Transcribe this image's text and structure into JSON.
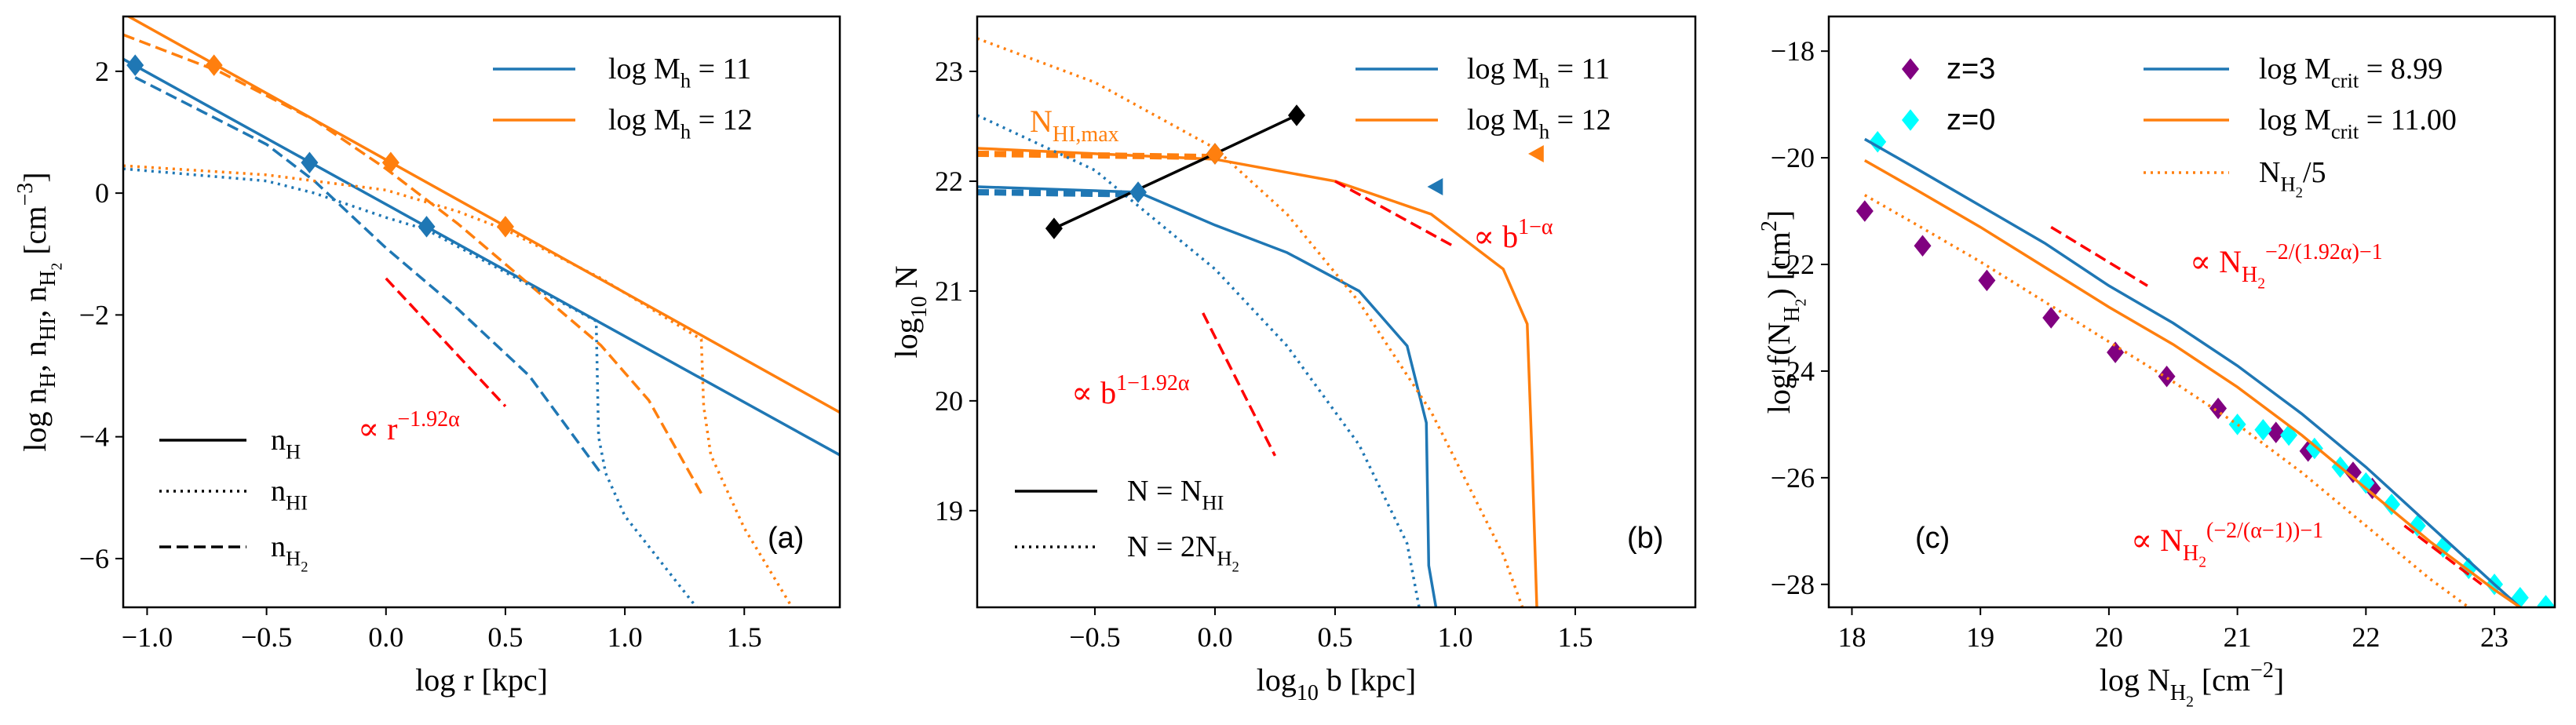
{
  "chart_data": [
    {
      "type": "line",
      "xlabel": "log r [kpc]",
      "ylabel": "log n_{H}, n_{HI}, n_{H_{2}} [cm^{−3}]",
      "panel_label": "(a)",
      "xlim": [
        -1.1,
        1.9
      ],
      "ylim": [
        -6.8,
        2.9
      ],
      "xticks": [
        {
          "value": -1,
          "label": "−1.0"
        },
        {
          "value": -0.5,
          "label": "−0.5"
        },
        {
          "value": 0,
          "label": "0.0"
        },
        {
          "value": 0.5,
          "label": "0.5"
        },
        {
          "value": 1,
          "label": "1.0"
        },
        {
          "value": 1.5,
          "label": "1.5"
        }
      ],
      "yticks": [
        {
          "value": -6,
          "label": "−6"
        },
        {
          "value": -4,
          "label": "−4"
        },
        {
          "value": -2,
          "label": "−2"
        },
        0,
        2
      ],
      "series": [
        {
          "name": "log M_{h} = 11",
          "color": "#1f77b4",
          "style": "solid",
          "x": [
            -1.1,
            1.9
          ],
          "values": [
            2.2,
            -4.3
          ]
        },
        {
          "name": "log M_{h} = 12",
          "color": "#ff7f0e",
          "style": "solid",
          "x": [
            -1.1,
            1.9
          ],
          "values": [
            2.95,
            -3.6
          ]
        },
        {
          "color": "#1f77b4",
          "style": "dashed",
          "x": [
            -1.05,
            -0.5,
            -0.3,
            0,
            0.3,
            0.6,
            0.9
          ],
          "values": [
            1.9,
            0.8,
            0.2,
            -0.9,
            -1.9,
            -3.0,
            -4.6
          ]
        },
        {
          "color": "#ff7f0e",
          "style": "dashed",
          "x": [
            -1.1,
            -0.7,
            -0.3,
            0,
            0.3,
            0.6,
            0.9,
            1.1,
            1.33
          ],
          "values": [
            2.6,
            2.0,
            1.2,
            0.4,
            -0.5,
            -1.5,
            -2.5,
            -3.4,
            -5.0
          ]
        },
        {
          "color": "#1f77b4",
          "style": "dotted",
          "x": [
            -1.1,
            -0.5,
            -0.3,
            0,
            0.17,
            0.5,
            0.88,
            0.89,
            0.92,
            1.0,
            1.3
          ],
          "values": [
            0.4,
            0.2,
            0.0,
            -0.4,
            -0.6,
            -1.3,
            -2.1,
            -4.0,
            -4.6,
            -5.3,
            -6.8
          ]
        },
        {
          "color": "#ff7f0e",
          "style": "dotted",
          "x": [
            -1.1,
            -0.5,
            0,
            0.3,
            0.5,
            0.9,
            1.32,
            1.33,
            1.36,
            1.5,
            1.7
          ],
          "values": [
            0.45,
            0.3,
            0.05,
            -0.3,
            -0.6,
            -1.4,
            -2.4,
            -3.5,
            -4.3,
            -5.5,
            -6.8
          ]
        },
        {
          "color": "#1f77b4",
          "style": "none",
          "marker": "diamond",
          "x": [
            -1.05,
            -0.32,
            0.17
          ],
          "values": [
            2.1,
            0.5,
            -0.55
          ]
        },
        {
          "color": "#ff7f0e",
          "style": "none",
          "marker": "diamond",
          "x": [
            -0.72,
            0.02,
            0.5
          ],
          "values": [
            2.1,
            0.5,
            -0.55
          ]
        },
        {
          "color": "#ff0000",
          "style": "dashed",
          "x": [
            0,
            0.5
          ],
          "values": [
            -1.4,
            -3.5
          ]
        }
      ],
      "style_legend": [
        {
          "label": "n_{H}",
          "style": "solid"
        },
        {
          "label": "n_{HI}",
          "style": "dotted"
        },
        {
          "label": "n_{H_{2}}",
          "style": "dashed"
        }
      ],
      "annotations": [
        {
          "text": "∝ r^{−1.92α}",
          "color": "#ff0000"
        }
      ]
    },
    {
      "type": "line",
      "xlabel": "log_{10} b [kpc]",
      "ylabel": "log_{10} N",
      "panel_label": "(b)",
      "xlim": [
        -0.99,
        2.0
      ],
      "ylim": [
        18.12,
        23.5
      ],
      "xticks": [
        {
          "value": -0.5,
          "label": "−0.5"
        },
        {
          "value": 0,
          "label": "0.0"
        },
        {
          "value": 0.5,
          "label": "0.5"
        },
        {
          "value": 1,
          "label": "1.0"
        },
        {
          "value": 1.5,
          "label": "1.5"
        }
      ],
      "yticks": [
        19,
        20,
        21,
        22,
        23
      ],
      "series": [
        {
          "name": "log M_{h} = 11",
          "color": "#1f77b4",
          "style": "solid",
          "x": [
            -0.99,
            -0.32,
            0,
            0.3,
            0.6,
            0.8,
            0.88,
            0.89,
            0.92
          ],
          "values": [
            21.95,
            21.9,
            21.6,
            21.35,
            21.0,
            20.5,
            19.8,
            18.5,
            18.12
          ]
        },
        {
          "name": "log M_{h} = 12",
          "color": "#ff7f0e",
          "style": "solid",
          "x": [
            -0.99,
            0,
            0.5,
            0.9,
            1.2,
            1.3,
            1.32,
            1.34
          ],
          "values": [
            22.3,
            22.2,
            22.0,
            21.7,
            21.2,
            20.7,
            19.5,
            18.12
          ]
        },
        {
          "color": "#1f77b4",
          "style": "dashed",
          "width": "thick",
          "x": [
            -0.99,
            -0.32
          ],
          "values": [
            21.9,
            21.88
          ]
        },
        {
          "color": "#ff7f0e",
          "style": "dashed",
          "width": "thick",
          "x": [
            -0.99,
            0
          ],
          "values": [
            22.25,
            22.22
          ]
        },
        {
          "color": "#1f77b4",
          "style": "dotted",
          "x": [
            -0.99,
            -0.5,
            0,
            0.3,
            0.6,
            0.8,
            0.85
          ],
          "values": [
            22.6,
            22.1,
            21.2,
            20.5,
            19.6,
            18.7,
            18.12
          ]
        },
        {
          "color": "#ff7f0e",
          "style": "dotted",
          "x": [
            -0.99,
            -0.5,
            0,
            0.3,
            0.6,
            0.9,
            1.2,
            1.28
          ],
          "values": [
            23.3,
            22.9,
            22.3,
            21.7,
            20.9,
            19.9,
            18.6,
            18.12
          ]
        },
        {
          "color": "#000000",
          "style": "solid",
          "marker": "diamond",
          "x": [
            -0.67,
            0,
            0.34
          ],
          "values": [
            21.57,
            22.25,
            22.6
          ]
        },
        {
          "color": "#1f77b4",
          "style": "none",
          "marker": "diamond",
          "x": [
            -0.32
          ],
          "values": [
            21.9
          ]
        },
        {
          "color": "#ff7f0e",
          "style": "none",
          "marker": "diamond",
          "x": [
            0
          ],
          "values": [
            22.25
          ]
        },
        {
          "color": "#1f77b4",
          "style": "none",
          "marker": "triangle-left",
          "x": [
            0.92
          ],
          "values": [
            21.95
          ]
        },
        {
          "color": "#ff7f0e",
          "style": "none",
          "marker": "triangle-left",
          "x": [
            1.34
          ],
          "values": [
            22.25
          ]
        },
        {
          "color": "#ff0000",
          "style": "dashed",
          "x": [
            0.5,
            1.0
          ],
          "values": [
            22.0,
            21.4
          ]
        },
        {
          "color": "#ff0000",
          "style": "dashed",
          "x": [
            -0.05,
            0.25
          ],
          "values": [
            20.8,
            19.5
          ]
        }
      ],
      "style_legend": [
        {
          "label": "N = N_{HI}",
          "style": "solid"
        },
        {
          "label": "N = 2N_{H_{2}}",
          "style": "dotted"
        }
      ],
      "annotations": [
        {
          "text": "N_{HI,max}",
          "color": "#ff7f0e"
        },
        {
          "text": "∝ b^{1−α}",
          "color": "#ff0000"
        },
        {
          "text": "∝ b^{1−1.92α}",
          "color": "#ff0000"
        }
      ]
    },
    {
      "type": "line",
      "xlabel": "log N_{H_{2}} [cm^{−2}]",
      "ylabel": "log f(N_{H_{2}}) [cm^{2}]",
      "panel_label": "(c)",
      "xlim": [
        17.82,
        23.47
      ],
      "ylim": [
        -28.43,
        -17.35
      ],
      "xticks": [
        18,
        19,
        20,
        21,
        22,
        23
      ],
      "yticks": [
        {
          "value": -28,
          "label": "−28"
        },
        {
          "value": -26,
          "label": "−26"
        },
        {
          "value": -24,
          "label": "−24"
        },
        {
          "value": -22,
          "label": "−22"
        },
        {
          "value": -20,
          "label": "−20"
        },
        {
          "value": -18,
          "label": "−18"
        }
      ],
      "series": [
        {
          "name": "z=3",
          "color": "#800080",
          "style": "none",
          "marker": "diamond",
          "x": [
            18.1,
            18.55,
            19.05,
            19.55,
            20.05,
            20.45,
            20.85,
            21.3,
            21.55,
            21.9,
            22.05
          ],
          "values": [
            -21.0,
            -21.65,
            -22.3,
            -23.0,
            -23.65,
            -24.1,
            -24.7,
            -25.15,
            -25.5,
            -25.9,
            -26.2
          ]
        },
        {
          "name": "z=0",
          "color": "#00ffff",
          "style": "none",
          "marker": "diamond",
          "x": [
            18.2,
            21.0,
            21.2,
            21.4,
            21.6,
            21.8,
            22.0,
            22.2,
            22.4,
            22.6,
            22.8,
            23.0,
            23.2,
            23.4
          ],
          "values": [
            -19.7,
            -25.0,
            -25.1,
            -25.2,
            -25.45,
            -25.8,
            -26.1,
            -26.5,
            -26.9,
            -27.3,
            -27.7,
            -28.0,
            -28.25,
            -28.4
          ]
        },
        {
          "name": "log M_{crit} = 8.99",
          "color": "#1f77b4",
          "style": "solid",
          "x": [
            18.1,
            18.5,
            19,
            19.5,
            20,
            20.5,
            21,
            21.5,
            22,
            22.5,
            23,
            23.2
          ],
          "values": [
            -19.65,
            -20.2,
            -20.9,
            -21.6,
            -22.4,
            -23.1,
            -23.9,
            -24.8,
            -25.8,
            -26.9,
            -28.0,
            -28.43
          ]
        },
        {
          "name": "log M_{crit} = 11.00",
          "color": "#ff7f0e",
          "style": "solid",
          "x": [
            18.1,
            18.5,
            19,
            19.5,
            20,
            20.5,
            21,
            21.5,
            22,
            22.5,
            23,
            23.2
          ],
          "values": [
            -20.05,
            -20.6,
            -21.3,
            -22.05,
            -22.8,
            -23.5,
            -24.3,
            -25.2,
            -26.2,
            -27.2,
            -28.1,
            -28.43
          ]
        },
        {
          "name": "N_{H_{2}}/5",
          "color": "#ff7f0e",
          "style": "dotted",
          "x": [
            18.1,
            18.5,
            19,
            19.5,
            20,
            20.5,
            21,
            21.5,
            22,
            22.5,
            22.8
          ],
          "values": [
            -20.7,
            -21.25,
            -21.95,
            -22.7,
            -23.45,
            -24.2,
            -25.0,
            -25.9,
            -26.9,
            -27.9,
            -28.43
          ]
        },
        {
          "color": "#ff0000",
          "style": "dashed",
          "x": [
            19.55,
            20.3
          ],
          "values": [
            -21.3,
            -22.4
          ]
        },
        {
          "color": "#ff0000",
          "style": "dashed",
          "x": [
            22.3,
            22.9
          ],
          "values": [
            -26.9,
            -28.0
          ]
        }
      ],
      "annotations": [
        {
          "text": "∝ N_{H_{2}}^{−2/(1.92α)−1}",
          "color": "#ff0000"
        },
        {
          "text": "∝ N_{H_{2}}^{(−2/(α−1))−1}",
          "color": "#ff0000"
        }
      ]
    }
  ]
}
